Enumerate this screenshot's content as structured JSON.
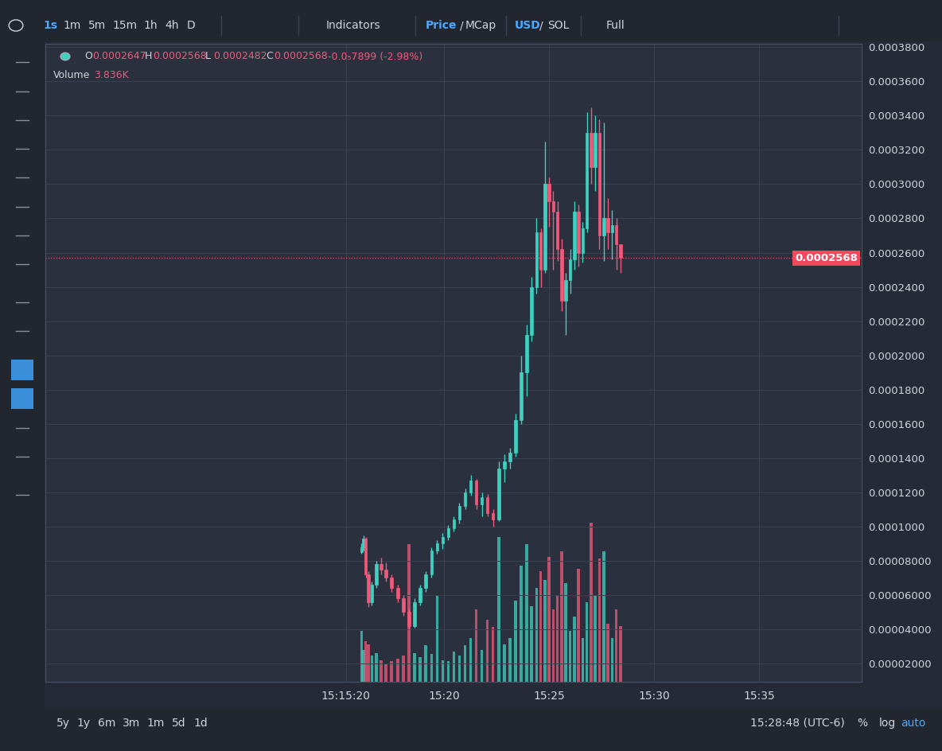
{
  "toolbar": {
    "timeframes": [
      "1s",
      "1m",
      "5m",
      "15m",
      "1h",
      "4h",
      "D"
    ],
    "indicators": "Indicators",
    "price_mcap": [
      "Price",
      "/",
      "MCap"
    ],
    "currency": [
      "USD",
      "/",
      "SOL"
    ],
    "full": "Full"
  },
  "bottom_bar": {
    "ranges": [
      "5y",
      "1y",
      "6m",
      "3m",
      "1m",
      "5d",
      "1d"
    ],
    "clock": "15:28:48 (UTC-6)",
    "options": [
      "%",
      "log",
      "auto"
    ]
  },
  "header": {
    "items": [
      {
        "label": "O",
        "value": "0.0002647"
      },
      {
        "label": "H",
        "value": "0.0002568"
      },
      {
        "label": "L",
        "value": "0.0002482"
      },
      {
        "label": "C",
        "value": "0.0002568"
      }
    ],
    "change": "-0.0₅7899 (-2.98%)",
    "volume": {
      "label": "Volume",
      "value": "3.836K"
    }
  },
  "chart_data": {
    "type": "candlestick",
    "grid": true,
    "x": [
      "15:16:04",
      "15:16:10",
      "15:16:16",
      "15:16:24",
      "15:16:34",
      "15:16:46",
      "15:17:00",
      "15:17:14",
      "15:17:30",
      "15:17:48",
      "15:18:04",
      "15:18:20",
      "15:18:36",
      "15:18:52",
      "15:19:08",
      "15:19:24",
      "15:19:40",
      "15:19:56",
      "15:20:12",
      "15:20:28",
      "15:20:44",
      "15:21:00",
      "15:21:16",
      "15:21:32",
      "15:21:48",
      "15:22:04",
      "15:22:20",
      "15:22:36",
      "15:22:52",
      "15:23:08",
      "15:23:24",
      "15:23:40",
      "15:23:56",
      "15:24:10",
      "15:24:24",
      "15:24:36",
      "15:24:48",
      "15:25:00",
      "15:25:12",
      "15:25:24",
      "15:25:36",
      "15:25:48",
      "15:26:00",
      "15:26:12",
      "15:26:24",
      "15:26:36",
      "15:26:48",
      "15:27:00",
      "15:27:12",
      "15:27:24",
      "15:27:36",
      "15:27:48",
      "15:28:00",
      "15:28:12",
      "15:28:24"
    ],
    "open": [
      8.5e-05,
      8.8e-05,
      9.3e-05,
      7.2e-05,
      5.6e-05,
      6.6e-05,
      7.8e-05,
      7.5e-05,
      7e-05,
      6.4e-05,
      5.8e-05,
      5e-05,
      4.2e-05,
      5.6e-05,
      6.4e-05,
      7.2e-05,
      8.6e-05,
      9e-05,
      9.4e-05,
      9.9e-05,
      0.000104,
      0.000112,
      0.00012,
      0.000127,
      0.000113,
      0.000117,
      0.000108,
      0.000104,
      0.000134,
      0.000138,
      0.000143,
      0.000162,
      0.00019,
      0.000212,
      0.00024,
      0.000272,
      0.00025,
      0.0003,
      0.00029,
      0.000284,
      0.000262,
      0.000232,
      0.000244,
      0.000256,
      0.000284,
      0.00026,
      0.000274,
      0.00033,
      0.00031,
      0.00033,
      0.00027,
      0.00028,
      0.000272,
      0.000276,
      0.0002647
    ],
    "high": [
      9e-05,
      9.5e-05,
      9.4e-05,
      7.4e-05,
      6.8e-05,
      8e-05,
      8.2e-05,
      7.9e-05,
      7.2e-05,
      6.6e-05,
      6e-05,
      5.2e-05,
      5.8e-05,
      6.6e-05,
      7.4e-05,
      8.8e-05,
      9.2e-05,
      9.6e-05,
      0.000101,
      0.000106,
      0.000114,
      0.000122,
      0.00013,
      0.000128,
      0.00012,
      0.000119,
      0.00011,
      0.000138,
      0.000142,
      0.000146,
      0.000166,
      0.0002,
      0.000218,
      0.000246,
      0.00028,
      0.000274,
      0.000325,
      0.000304,
      0.000296,
      0.00029,
      0.000268,
      0.000248,
      0.000262,
      0.00029,
      0.000288,
      0.000278,
      0.000342,
      0.000345,
      0.00034,
      0.000338,
      0.000336,
      0.000292,
      0.000285,
      0.00028,
      0.0002568
    ],
    "low": [
      8.4e-05,
      8.6e-05,
      7e-05,
      5.3e-05,
      5.4e-05,
      6.4e-05,
      7.2e-05,
      6.8e-05,
      6.2e-05,
      5.6e-05,
      4.8e-05,
      4e-05,
      4.1e-05,
      5.4e-05,
      6.2e-05,
      7e-05,
      8.4e-05,
      8.7e-05,
      9.2e-05,
      9.7e-05,
      0.000102,
      0.00011,
      0.000118,
      0.00011,
      0.000106,
      0.000106,
      0.0001,
      0.000103,
      0.000126,
      0.000134,
      0.000141,
      0.00016,
      0.000176,
      0.000208,
      0.000236,
      0.00024,
      0.000248,
      0.000275,
      0.00025,
      0.000255,
      0.000226,
      0.000212,
      0.000236,
      0.00025,
      0.000252,
      0.000254,
      0.000272,
      0.0003,
      0.000296,
      0.000262,
      0.000255,
      0.000262,
      0.000256,
      0.00025,
      0.0002482
    ],
    "close": [
      8.8e-05,
      9.3e-05,
      7.2e-05,
      5.6e-05,
      6.6e-05,
      7.8e-05,
      7.5e-05,
      7e-05,
      6.4e-05,
      5.8e-05,
      5e-05,
      4.2e-05,
      5.6e-05,
      6.4e-05,
      7.2e-05,
      8.6e-05,
      9e-05,
      9.4e-05,
      9.9e-05,
      0.000104,
      0.000112,
      0.00012,
      0.000127,
      0.000113,
      0.000117,
      0.000108,
      0.000104,
      0.000134,
      0.000138,
      0.000143,
      0.000162,
      0.00019,
      0.000212,
      0.00024,
      0.000272,
      0.00025,
      0.0003,
      0.00029,
      0.000284,
      0.000262,
      0.000232,
      0.000244,
      0.000256,
      0.000284,
      0.00026,
      0.000274,
      0.00033,
      0.00031,
      0.00033,
      0.00027,
      0.00028,
      0.000272,
      0.000276,
      0.000265,
      0.0002568
    ],
    "volume": [
      3500,
      2200,
      2800,
      2600,
      1800,
      2000,
      1500,
      1200,
      1400,
      1600,
      1800,
      9500,
      2000,
      1700,
      2500,
      1900,
      6000,
      1500,
      1400,
      2100,
      1800,
      2500,
      3000,
      5000,
      2200,
      4300,
      3800,
      10000,
      2600,
      3000,
      5600,
      8000,
      9500,
      5200,
      6500,
      7600,
      7000,
      8600,
      5000,
      6000,
      9000,
      6800,
      3500,
      4500,
      7800,
      3000,
      5500,
      11000,
      6000,
      8500,
      9000,
      4000,
      3000,
      5000,
      3836
    ],
    "colors": [
      "#3fd1bf",
      "#3fd1bf",
      "#ef5a7a",
      "#ef5a7a",
      "#3fd1bf",
      "#3fd1bf",
      "#ef5a7a",
      "#ef5a7a",
      "#ef5a7a",
      "#ef5a7a",
      "#ef5a7a",
      "#ef5a7a",
      "#3fd1bf",
      "#3fd1bf",
      "#3fd1bf",
      "#3fd1bf",
      "#3fd1bf",
      "#3fd1bf",
      "#3fd1bf",
      "#3fd1bf",
      "#3fd1bf",
      "#3fd1bf",
      "#3fd1bf",
      "#ef5a7a",
      "#3fd1bf",
      "#ef5a7a",
      "#ef5a7a",
      "#3fd1bf",
      "#3fd1bf",
      "#3fd1bf",
      "#3fd1bf",
      "#3fd1bf",
      "#3fd1bf",
      "#3fd1bf",
      "#3fd1bf",
      "#ef5a7a",
      "#3fd1bf",
      "#ef5a7a",
      "#ef5a7a",
      "#ef5a7a",
      "#ef5a7a",
      "#3fd1bf",
      "#3fd1bf",
      "#3fd1bf",
      "#ef5a7a",
      "#3fd1bf",
      "#3fd1bf",
      "#ef5a7a",
      "#3fd1bf",
      "#ef5a7a",
      "#3fd1bf",
      "#ef5a7a",
      "#3fd1bf",
      "#ef5a7a",
      "#ef5a7a"
    ],
    "xlim": [
      "15:01:01",
      "15:39:53"
    ],
    "xticks": [
      "15:15:20",
      "15:20",
      "15:25",
      "15:30",
      "15:35"
    ],
    "ylim": [
      9.3e-06,
      0.000382
    ],
    "yticks": [
      {
        "value": 2e-05,
        "label": "0.00002000"
      },
      {
        "value": 4e-05,
        "label": "0.00004000"
      },
      {
        "value": 6e-05,
        "label": "0.00006000"
      },
      {
        "value": 8e-05,
        "label": "0.00008000"
      },
      {
        "value": 0.0001,
        "label": "0.0001000"
      },
      {
        "value": 0.00012,
        "label": "0.0001200"
      },
      {
        "value": 0.00014,
        "label": "0.0001400"
      },
      {
        "value": 0.00016,
        "label": "0.0001600"
      },
      {
        "value": 0.00018,
        "label": "0.0001800"
      },
      {
        "value": 0.0002,
        "label": "0.0002000"
      },
      {
        "value": 0.00022,
        "label": "0.0002200"
      },
      {
        "value": 0.00024,
        "label": "0.0002400"
      },
      {
        "value": 0.00026,
        "label": "0.0002600"
      },
      {
        "value": 0.00028,
        "label": "0.0002800"
      },
      {
        "value": 0.0003,
        "label": "0.0003000"
      },
      {
        "value": 0.00032,
        "label": "0.0003200"
      },
      {
        "value": 0.00034,
        "label": "0.0003400"
      },
      {
        "value": 0.00036,
        "label": "0.0003600"
      },
      {
        "value": 0.00038,
        "label": "0.0003800"
      }
    ],
    "y2lim": [
      0,
      44000
    ],
    "price_line": {
      "value": 0.0002568,
      "label": "0.0002568",
      "color": "#f2495f"
    }
  }
}
